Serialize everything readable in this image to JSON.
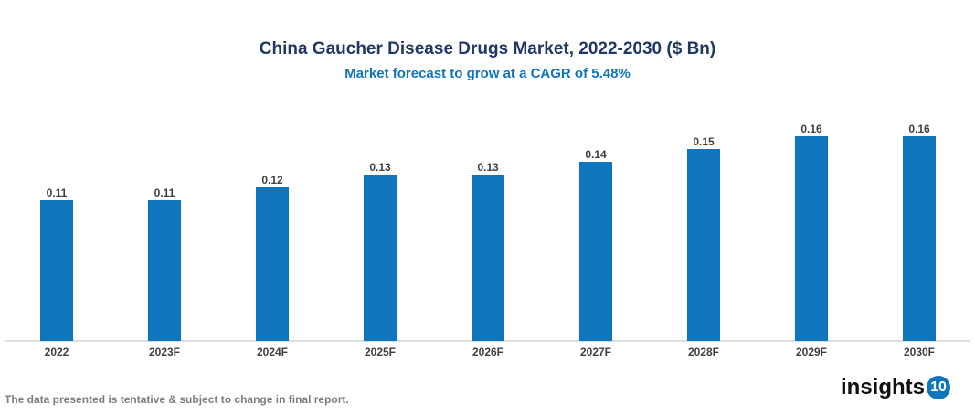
{
  "chart_data": {
    "type": "bar",
    "title": "China Gaucher Disease Drugs Market, 2022-2030 ($ Bn)",
    "subtitle": "Market forecast to grow at a CAGR of 5.48%",
    "categories": [
      "2022",
      "2023F",
      "2024F",
      "2025F",
      "2026F",
      "2027F",
      "2028F",
      "2029F",
      "2030F"
    ],
    "values": [
      0.11,
      0.11,
      0.12,
      0.13,
      0.13,
      0.14,
      0.15,
      0.16,
      0.16
    ],
    "data_labels": [
      "0.11",
      "0.11",
      "0.12",
      "0.13",
      "0.13",
      "0.14",
      "0.15",
      "0.16",
      "0.16"
    ],
    "xlabel": "",
    "ylabel": "",
    "grid": false,
    "bar_color": "#0f75bc"
  },
  "footer": {
    "note": "The data presented is tentative & subject to change in final report.",
    "logo_text": "insights",
    "logo_number": "10"
  }
}
